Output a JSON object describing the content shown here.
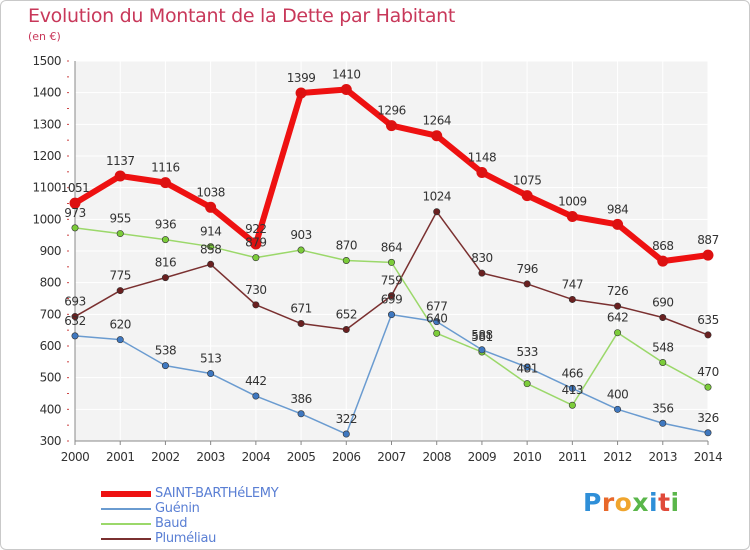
{
  "title": "Evolution du Montant de la Dette par Habitant",
  "subtitle": "(en €)",
  "logo": {
    "text": "Proxiti",
    "colors": [
      "#2f8fd8",
      "#e8682a",
      "#f0a52d",
      "#5ab64a",
      "#2f8fd8",
      "#e04a3a",
      "#5ab64a"
    ]
  },
  "chart_data": {
    "type": "line",
    "title": "Evolution du Montant de la Dette par Habitant",
    "ylabel": "(en €)",
    "x": [
      "2000",
      "2001",
      "2002",
      "2003",
      "2004",
      "2005",
      "2006",
      "2007",
      "2008",
      "2009",
      "2010",
      "2011",
      "2012",
      "2013",
      "2014"
    ],
    "ylim": [
      300,
      1500
    ],
    "yticks": [
      300,
      400,
      500,
      600,
      700,
      800,
      900,
      1000,
      1100,
      1200,
      1300,
      1400,
      1500
    ],
    "grid": true,
    "legend_position": "bottom-left",
    "series": [
      {
        "name": "SAINT-BARTHéLEMY",
        "color": "#ee1111",
        "marker": "#dd1111",
        "width": 6,
        "values": [
          1051,
          1137,
          1116,
          1038,
          922,
          1399,
          1410,
          1296,
          1264,
          1148,
          1075,
          1009,
          984,
          868,
          887
        ]
      },
      {
        "name": "Guénin",
        "color": "#6a9bd0",
        "marker": "#3f78c0",
        "width": 1.5,
        "values": [
          632,
          620,
          538,
          513,
          442,
          386,
          322,
          699,
          677,
          588,
          533,
          466,
          400,
          356,
          326
        ]
      },
      {
        "name": "Baud",
        "color": "#9bd86a",
        "marker": "#7ccc3a",
        "width": 1.5,
        "values": [
          973,
          955,
          936,
          914,
          879,
          903,
          870,
          864,
          640,
          581,
          481,
          413,
          642,
          548,
          470
        ]
      },
      {
        "name": "Pluméliau",
        "color": "#7a3030",
        "marker": "#6a2020",
        "width": 1.5,
        "values": [
          693,
          775,
          816,
          858,
          730,
          671,
          652,
          759,
          1024,
          830,
          796,
          747,
          726,
          690,
          635
        ]
      }
    ]
  }
}
